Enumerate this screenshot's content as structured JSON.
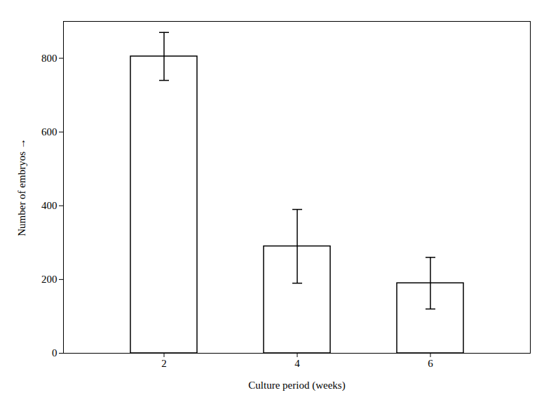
{
  "chart_data": {
    "type": "bar",
    "categories": [
      "2",
      "4",
      "6"
    ],
    "values": [
      805,
      290,
      190
    ],
    "errors": [
      65,
      100,
      70
    ],
    "color": "#ffffff",
    "xlabel": "Culture period (weeks)",
    "ylabel": "Number of embryos",
    "ylim": [
      0,
      900
    ],
    "yticks": [
      0,
      200,
      400,
      600,
      800
    ],
    "grid": false
  }
}
